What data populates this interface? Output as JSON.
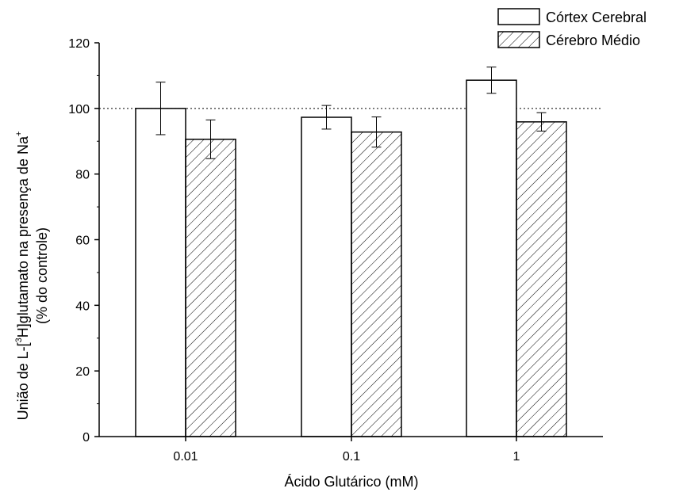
{
  "chart_data": {
    "type": "bar",
    "categories": [
      "0.01",
      "0.1",
      "1"
    ],
    "series": [
      {
        "name": "Córtex Cerebral",
        "values": [
          100,
          97.3,
          108.6
        ],
        "errors": [
          8.0,
          3.6,
          4.0
        ],
        "pattern": "open"
      },
      {
        "name": "Cérebro Médio",
        "values": [
          90.6,
          92.8,
          95.9
        ],
        "errors": [
          5.9,
          4.6,
          2.8
        ],
        "pattern": "hatched"
      }
    ],
    "xlabel": "Ácido Glutárico (mM)",
    "ylabel_line1_pre": "União de L-[",
    "ylabel_line1_sup1": "3",
    "ylabel_line1_mid": "H]glutamato na presença de Na",
    "ylabel_line1_sup2": "+",
    "ylabel_line2": "(% do controle)",
    "ylim": [
      0,
      120
    ],
    "yticks": [
      "0",
      "20",
      "40",
      "60",
      "80",
      "100",
      "120"
    ],
    "reference_line": 100,
    "legend_position": "top-right",
    "grid": false
  }
}
